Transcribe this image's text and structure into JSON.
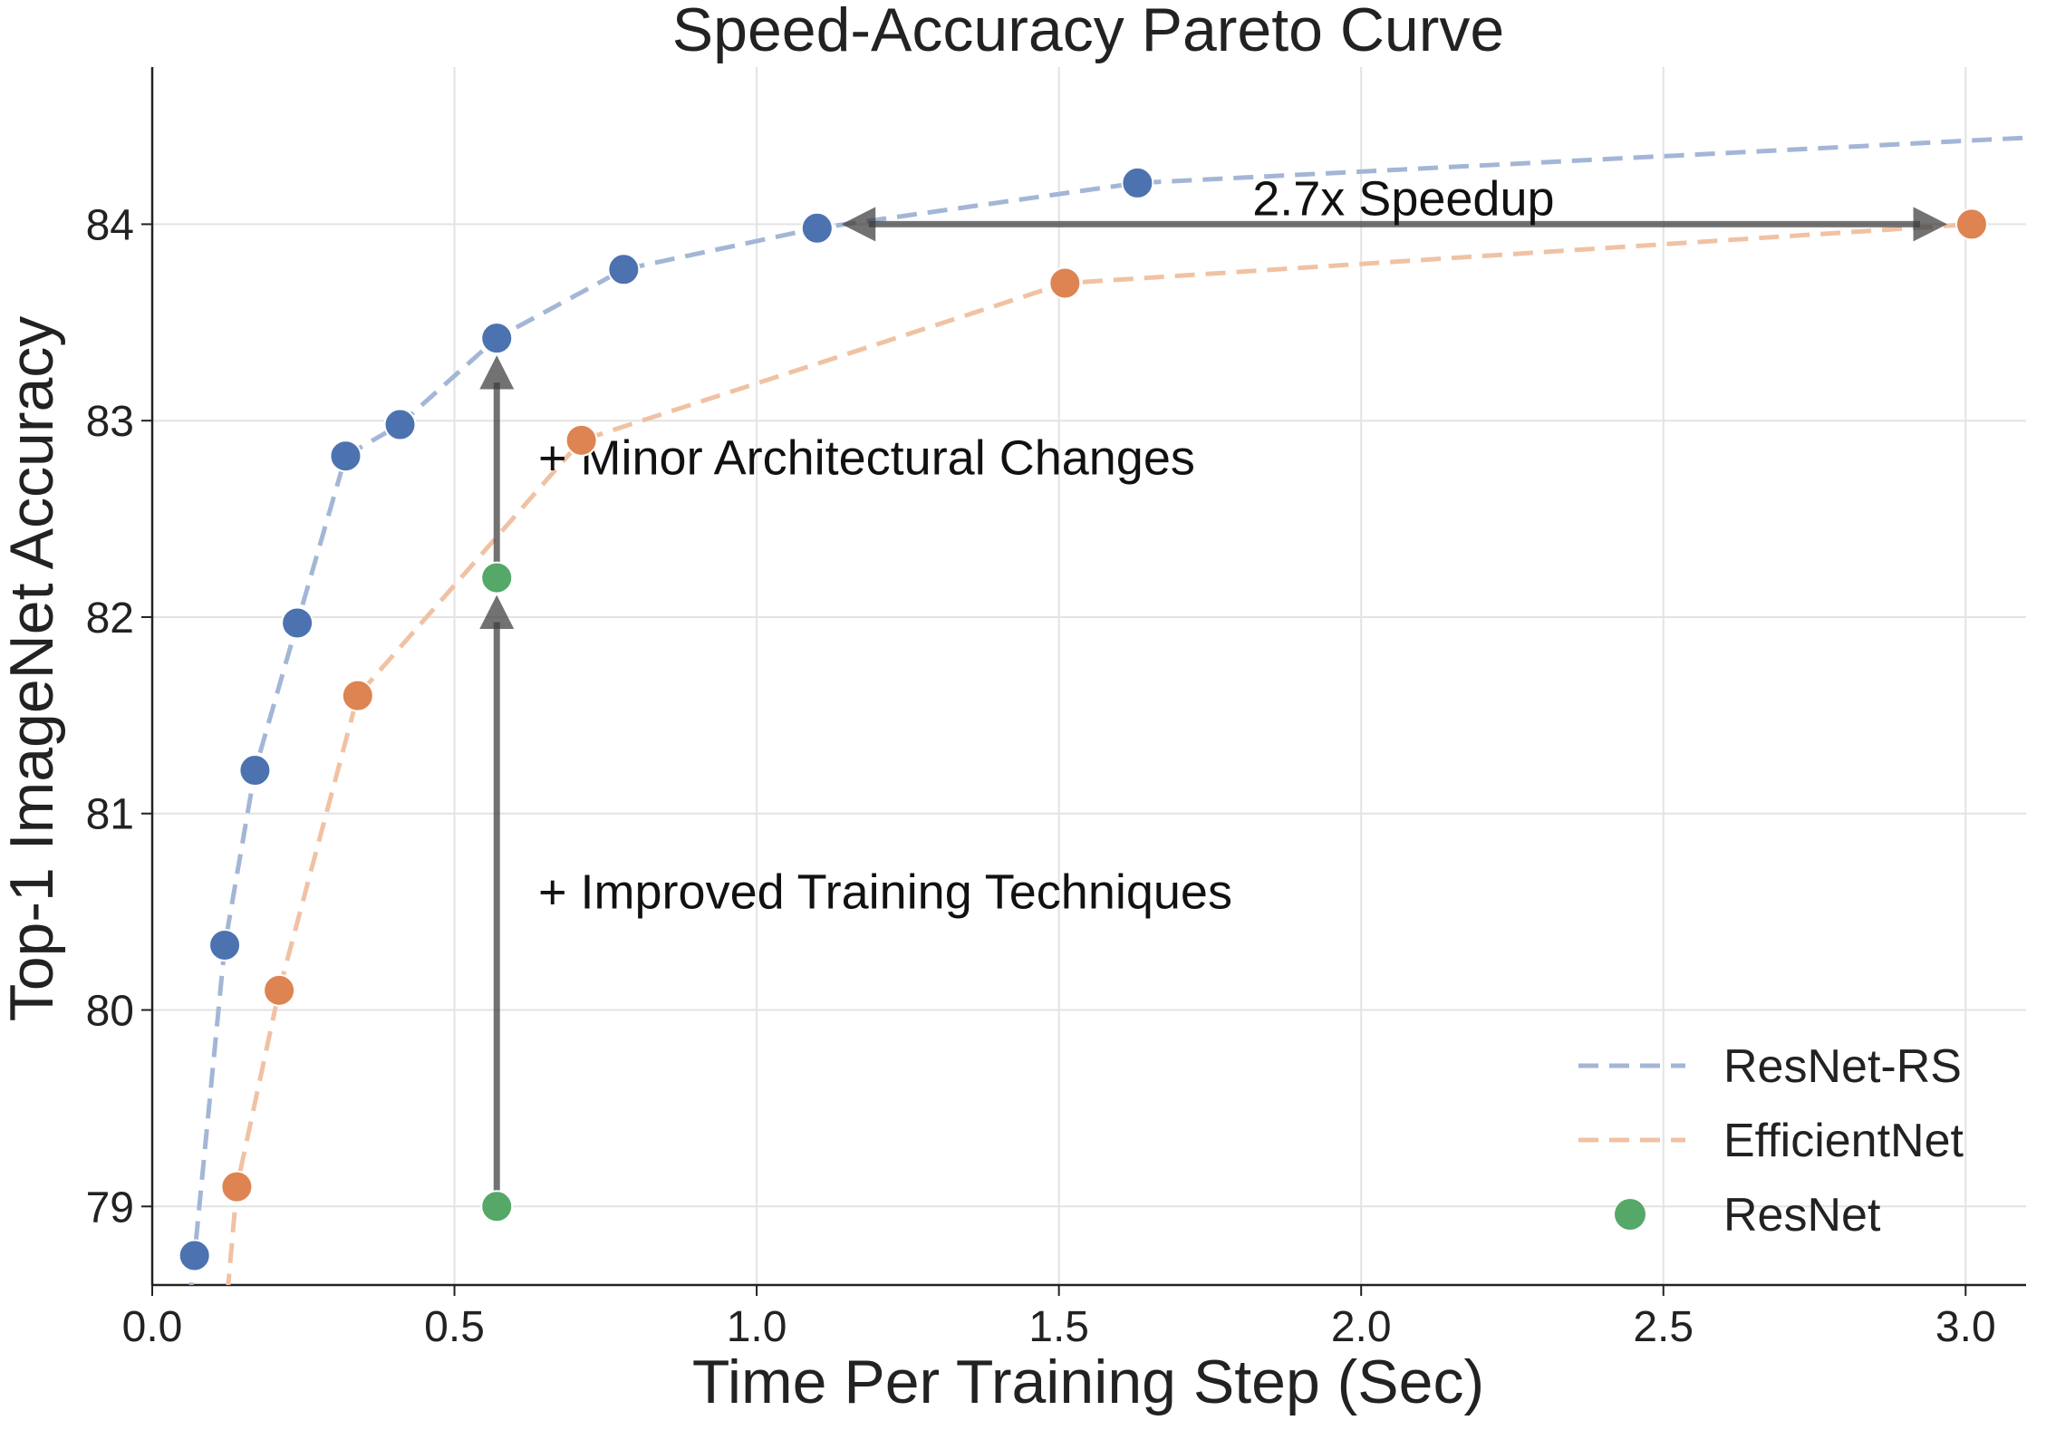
{
  "chart_data": {
    "type": "line",
    "title": "Speed-Accuracy Pareto Curve",
    "xlabel": "Time Per Training Step (Sec)",
    "ylabel": "Top-1 ImageNet Accuracy",
    "xlim": [
      0.0,
      3.1
    ],
    "ylim": [
      78.6,
      84.8
    ],
    "xticks": [
      "0.0",
      "0.5",
      "1.0",
      "1.5",
      "2.0",
      "2.5",
      "3.0"
    ],
    "yticks": [
      "79",
      "80",
      "81",
      "82",
      "83",
      "84"
    ],
    "grid": true,
    "legend_position": "bottom-right",
    "series": [
      {
        "name": "ResNet-RS",
        "style": "dashed line with markers",
        "line_color": "#a3b6d6",
        "marker_color": "#4c72b0",
        "x": [
          0.07,
          0.12,
          0.17,
          0.24,
          0.32,
          0.41,
          0.57,
          0.78,
          1.1,
          1.63
        ],
        "y": [
          78.75,
          80.33,
          81.22,
          81.97,
          82.82,
          82.98,
          83.42,
          83.77,
          83.98,
          84.21
        ],
        "line_extension": {
          "x": [
            0.07,
            0.05,
            1.63,
            3.1
          ],
          "y": [
            78.75,
            78.2,
            84.21,
            84.44
          ]
        }
      },
      {
        "name": "EfficientNet",
        "style": "dashed line with markers",
        "line_color": "#f0c2a3",
        "marker_color": "#dd8452",
        "x": [
          0.14,
          0.21,
          0.34,
          0.71,
          1.51,
          3.01
        ],
        "y": [
          79.1,
          80.1,
          81.6,
          82.9,
          83.7,
          84.0
        ],
        "line_start": {
          "x": 0.12,
          "y": 78.4
        }
      },
      {
        "name": "ResNet",
        "style": "markers only",
        "marker_color": "#55a868",
        "x": [
          0.57,
          0.57
        ],
        "y": [
          79.0,
          82.2
        ]
      }
    ],
    "annotations": [
      {
        "text": "+ Improved Training Techniques",
        "arrow": "vertical",
        "x": 0.57,
        "from_y": 79.0,
        "to_y": 82.2
      },
      {
        "text": "+ Minor Architectural Changes",
        "arrow": "vertical",
        "x": 0.57,
        "from_y": 82.2,
        "to_y": 83.42
      },
      {
        "text": "2.7x Speedup",
        "arrow": "horizontal",
        "y": 84.0,
        "from_x": 3.01,
        "to_x": 1.1
      }
    ]
  }
}
